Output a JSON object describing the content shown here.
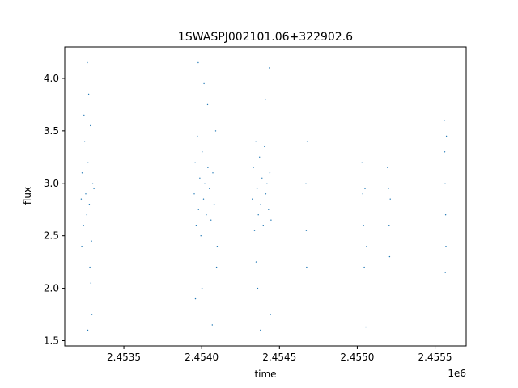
{
  "chart_data": {
    "type": "scatter",
    "title": "1SWASPJ002101.06+322902.6",
    "xlabel": "time",
    "ylabel": "flux",
    "x_offset_label": "1e6",
    "xlim": [
      2453120,
      2455700
    ],
    "ylim": [
      1.45,
      4.3
    ],
    "x_ticks": [
      2453500,
      2454000,
      2454500,
      2455000,
      2455500
    ],
    "x_tick_labels": [
      "2.4535",
      "2.4540",
      "2.4545",
      "2.4550",
      "2.4555"
    ],
    "y_ticks": [
      1.5,
      2.0,
      2.5,
      3.0,
      3.5,
      4.0
    ],
    "y_tick_labels": [
      "1.5",
      "2.0",
      "2.5",
      "3.0",
      "3.5",
      "4.0"
    ],
    "grid": false,
    "marker_color": "#1f77b4",
    "series": [
      {
        "values": [
          [
            2453226,
            2.85
          ],
          [
            2453232,
            3.1
          ],
          [
            2453240,
            2.6
          ],
          [
            2453248,
            3.4
          ],
          [
            2453255,
            2.9
          ],
          [
            2453262,
            2.7
          ],
          [
            2453270,
            3.2
          ],
          [
            2453278,
            2.8
          ],
          [
            2453285,
            3.55
          ],
          [
            2453292,
            2.45
          ],
          [
            2453300,
            3.0
          ],
          [
            2453308,
            2.95
          ],
          [
            2453268,
            1.6
          ],
          [
            2453274,
            3.85
          ],
          [
            2453282,
            2.2
          ],
          [
            2453294,
            1.75
          ],
          [
            2453265,
            4.15
          ],
          [
            2453230,
            2.4
          ],
          [
            2453244,
            3.65
          ],
          [
            2453288,
            2.05
          ],
          [
            2453952,
            2.9
          ],
          [
            2453958,
            3.2
          ],
          [
            2453965,
            2.6
          ],
          [
            2453972,
            3.45
          ],
          [
            2453980,
            2.75
          ],
          [
            2453988,
            3.05
          ],
          [
            2453995,
            2.5
          ],
          [
            2454003,
            3.3
          ],
          [
            2454012,
            2.85
          ],
          [
            2454020,
            3.0
          ],
          [
            2454030,
            2.7
          ],
          [
            2454040,
            3.15
          ],
          [
            2454050,
            2.95
          ],
          [
            2454060,
            2.65
          ],
          [
            2454072,
            3.1
          ],
          [
            2454080,
            2.8
          ],
          [
            2454090,
            3.5
          ],
          [
            2454100,
            2.4
          ],
          [
            2454068,
            1.65
          ],
          [
            2453978,
            4.15
          ],
          [
            2454002,
            2.0
          ],
          [
            2454038,
            3.75
          ],
          [
            2454096,
            2.2
          ],
          [
            2453960,
            1.9
          ],
          [
            2454015,
            3.95
          ],
          [
            2454325,
            2.85
          ],
          [
            2454332,
            3.15
          ],
          [
            2454340,
            2.55
          ],
          [
            2454348,
            3.4
          ],
          [
            2454356,
            2.95
          ],
          [
            2454364,
            2.7
          ],
          [
            2454372,
            3.25
          ],
          [
            2454380,
            2.8
          ],
          [
            2454388,
            3.05
          ],
          [
            2454396,
            2.6
          ],
          [
            2454404,
            3.35
          ],
          [
            2454412,
            2.9
          ],
          [
            2454420,
            3.0
          ],
          [
            2454430,
            2.75
          ],
          [
            2454438,
            3.1
          ],
          [
            2454446,
            2.65
          ],
          [
            2454378,
            1.6
          ],
          [
            2454435,
            4.1
          ],
          [
            2454360,
            2.0
          ],
          [
            2454410,
            3.8
          ],
          [
            2454350,
            2.25
          ],
          [
            2454442,
            1.75
          ],
          [
            2454670,
            3.0
          ],
          [
            2454672,
            2.55
          ],
          [
            2454675,
            2.2
          ],
          [
            2454678,
            3.4
          ],
          [
            2455030,
            3.2
          ],
          [
            2455035,
            2.9
          ],
          [
            2455040,
            2.6
          ],
          [
            2455045,
            2.2
          ],
          [
            2455050,
            2.95
          ],
          [
            2455055,
            1.63
          ],
          [
            2455060,
            2.4
          ],
          [
            2455195,
            3.15
          ],
          [
            2455200,
            2.95
          ],
          [
            2455205,
            2.6
          ],
          [
            2455208,
            2.3
          ],
          [
            2455212,
            2.85
          ],
          [
            2455560,
            3.6
          ],
          [
            2455562,
            3.3
          ],
          [
            2455565,
            3.0
          ],
          [
            2455568,
            2.7
          ],
          [
            2455570,
            2.4
          ],
          [
            2455566,
            2.15
          ],
          [
            2455573,
            3.45
          ]
        ]
      }
    ]
  }
}
